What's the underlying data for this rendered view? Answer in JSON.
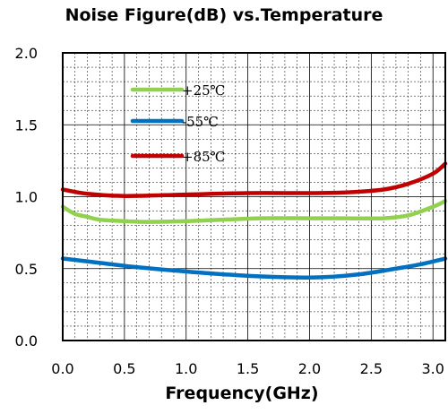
{
  "chart_data": {
    "type": "line",
    "title": "Noise Figure(dB) vs.Temperature",
    "xlabel": "Frequency(GHz)",
    "ylabel": "",
    "xlim": [
      0,
      3.1
    ],
    "ylim": [
      0,
      2.0
    ],
    "xticks": [
      "0.0",
      "0.5",
      "1.0",
      "1.5",
      "2.0",
      "2.5",
      "3.0"
    ],
    "yticks": [
      "0.0",
      "0.5",
      "1.0",
      "1.5",
      "2.0"
    ],
    "grid": true,
    "legend_position": "top-left",
    "series": [
      {
        "name": "+25℃",
        "color": "#92d050",
        "x": [
          0,
          0.1,
          0.2,
          0.3,
          0.5,
          0.7,
          1.0,
          1.3,
          1.6,
          2.0,
          2.3,
          2.6,
          2.8,
          3.0,
          3.1
        ],
        "y": [
          0.93,
          0.88,
          0.86,
          0.84,
          0.83,
          0.825,
          0.83,
          0.84,
          0.85,
          0.85,
          0.85,
          0.85,
          0.87,
          0.93,
          0.97
        ]
      },
      {
        "name": "-55℃",
        "color": "#0070c0",
        "x": [
          0,
          0.3,
          0.6,
          1.0,
          1.4,
          1.8,
          2.1,
          2.4,
          2.7,
          2.9,
          3.1
        ],
        "y": [
          0.57,
          0.54,
          0.51,
          0.48,
          0.455,
          0.44,
          0.44,
          0.46,
          0.5,
          0.53,
          0.57
        ]
      },
      {
        "name": "+85℃",
        "color": "#c00000",
        "x": [
          0,
          0.2,
          0.5,
          1.0,
          1.5,
          2.0,
          2.3,
          2.6,
          2.8,
          3.0,
          3.1
        ],
        "y": [
          1.05,
          1.02,
          1.005,
          1.015,
          1.025,
          1.025,
          1.03,
          1.05,
          1.09,
          1.16,
          1.23
        ]
      }
    ]
  }
}
